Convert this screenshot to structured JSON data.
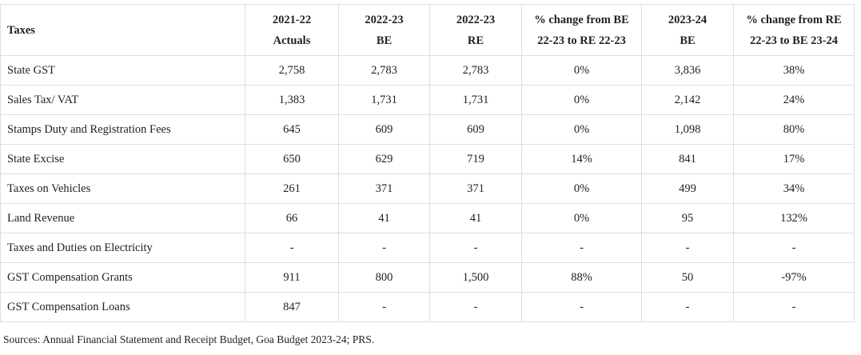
{
  "table": {
    "headers": [
      {
        "line1": "Taxes",
        "line2": ""
      },
      {
        "line1": "2021-22",
        "line2": "Actuals"
      },
      {
        "line1": "2022-23",
        "line2": "BE"
      },
      {
        "line1": "2022-23",
        "line2": "RE"
      },
      {
        "line1": "% change from BE",
        "line2": "22-23 to RE 22-23"
      },
      {
        "line1": "2023-24",
        "line2": "BE"
      },
      {
        "line1": "% change from RE",
        "line2": "22-23 to BE 23-24"
      }
    ],
    "rows": [
      [
        "State GST",
        "2,758",
        "2,783",
        "2,783",
        "0%",
        "3,836",
        "38%"
      ],
      [
        "Sales Tax/ VAT",
        "1,383",
        "1,731",
        "1,731",
        "0%",
        "2,142",
        "24%"
      ],
      [
        "Stamps Duty and Registration Fees",
        "645",
        "609",
        "609",
        "0%",
        "1,098",
        "80%"
      ],
      [
        "State Excise",
        "650",
        "629",
        "719",
        "14%",
        "841",
        "17%"
      ],
      [
        "Taxes on Vehicles",
        "261",
        "371",
        "371",
        "0%",
        "499",
        "34%"
      ],
      [
        "Land Revenue",
        "66",
        "41",
        "41",
        "0%",
        "95",
        "132%"
      ],
      [
        "Taxes and Duties on Electricity",
        "-",
        "-",
        "-",
        "-",
        "-",
        "-"
      ],
      [
        "GST Compensation Grants",
        "911",
        "800",
        "1,500",
        "88%",
        "50",
        "-97%"
      ],
      [
        "GST Compensation Loans",
        "847",
        "-",
        "-",
        "-",
        "-",
        "-"
      ]
    ]
  },
  "source": "Sources: Annual Financial Statement and Receipt Budget, Goa Budget 2023-24; PRS."
}
